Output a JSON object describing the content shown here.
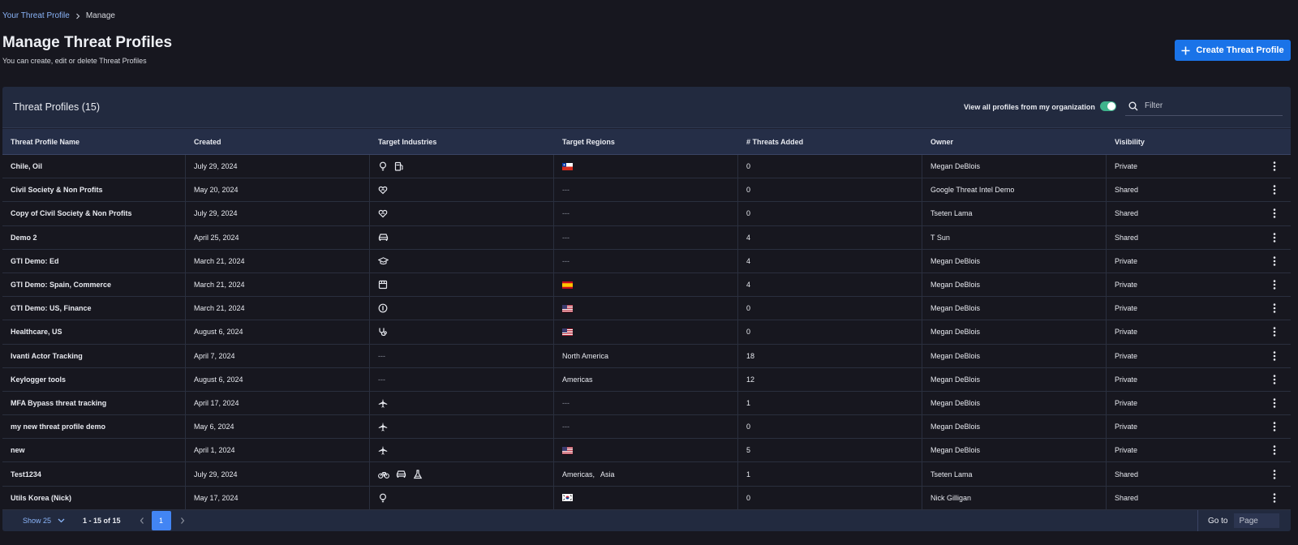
{
  "breadcrumb": {
    "parent": "Your Threat Profile",
    "current": "Manage"
  },
  "page": {
    "title": "Manage Threat Profiles",
    "subtitle": "You can create, edit or delete Threat Profiles",
    "create_button": "Create Threat Profile"
  },
  "panel": {
    "title": "Threat Profiles (15)",
    "toggle_label": "View all profiles from my organization",
    "toggle_on": true,
    "filter_placeholder": "Filter"
  },
  "columns": [
    "Threat Profile Name",
    "Created",
    "Target Industries",
    "Target Regions",
    "# Threats Added",
    "Owner",
    "Visibility"
  ],
  "rows": [
    {
      "name": "Chile, Oil",
      "created": "July 29, 2024",
      "industries": [
        "lightbulb-icon",
        "fuel-pump-icon"
      ],
      "regions": {
        "flags": [
          "chile"
        ]
      },
      "threats": "0",
      "owner": "Megan DeBlois",
      "visibility": "Private"
    },
    {
      "name": "Civil Society & Non Profits",
      "created": "May 20, 2024",
      "industries": [
        "heart-hand-icon"
      ],
      "regions": {
        "text": "---"
      },
      "threats": "0",
      "owner": "Google Threat Intel Demo",
      "visibility": "Shared"
    },
    {
      "name": "Copy of Civil Society & Non Profits",
      "created": "July 29, 2024",
      "industries": [
        "heart-hand-icon"
      ],
      "regions": {
        "text": "---"
      },
      "threats": "0",
      "owner": "Tseten Lama",
      "visibility": "Shared"
    },
    {
      "name": "Demo 2",
      "created": "April 25, 2024",
      "industries": [
        "car-icon"
      ],
      "regions": {
        "text": "---"
      },
      "threats": "4",
      "owner": "T Sun",
      "visibility": "Shared"
    },
    {
      "name": "GTI Demo: Ed",
      "created": "March 21, 2024",
      "industries": [
        "graduation-cap-icon"
      ],
      "regions": {
        "text": "---"
      },
      "threats": "4",
      "owner": "Megan DeBlois",
      "visibility": "Private"
    },
    {
      "name": "GTI Demo: Spain, Commerce",
      "created": "March 21, 2024",
      "industries": [
        "storefront-icon"
      ],
      "regions": {
        "flags": [
          "spain"
        ]
      },
      "threats": "4",
      "owner": "Megan DeBlois",
      "visibility": "Private"
    },
    {
      "name": "GTI Demo: US, Finance",
      "created": "March 21, 2024",
      "industries": [
        "money-icon"
      ],
      "regions": {
        "flags": [
          "usa"
        ]
      },
      "threats": "0",
      "owner": "Megan DeBlois",
      "visibility": "Private"
    },
    {
      "name": "Healthcare, US",
      "created": "August 6, 2024",
      "industries": [
        "stethoscope-icon"
      ],
      "regions": {
        "flags": [
          "usa"
        ]
      },
      "threats": "0",
      "owner": "Megan DeBlois",
      "visibility": "Private"
    },
    {
      "name": "Ivanti Actor Tracking",
      "created": "April 7, 2024",
      "industries": [],
      "industries_text": "---",
      "regions": {
        "text": "North America"
      },
      "threats": "18",
      "owner": "Megan DeBlois",
      "visibility": "Private"
    },
    {
      "name": "Keylogger tools",
      "created": "August 6, 2024",
      "industries": [],
      "industries_text": "---",
      "regions": {
        "text": "Americas"
      },
      "threats": "12",
      "owner": "Megan DeBlois",
      "visibility": "Private"
    },
    {
      "name": "MFA Bypass threat tracking",
      "created": "April 17, 2024",
      "industries": [
        "airplane-icon"
      ],
      "regions": {
        "text": "---"
      },
      "threats": "1",
      "owner": "Megan DeBlois",
      "visibility": "Private"
    },
    {
      "name": "my new threat profile demo",
      "created": "May 6, 2024",
      "industries": [
        "airplane-icon"
      ],
      "regions": {
        "text": "---"
      },
      "threats": "0",
      "owner": "Megan DeBlois",
      "visibility": "Private"
    },
    {
      "name": "new",
      "created": "April 1, 2024",
      "industries": [
        "airplane-icon"
      ],
      "regions": {
        "flags": [
          "usa"
        ]
      },
      "threats": "5",
      "owner": "Megan DeBlois",
      "visibility": "Private"
    },
    {
      "name": "Test1234",
      "created": "July 29, 2024",
      "industries": [
        "bicycle-icon",
        "car-icon",
        "flask-icon"
      ],
      "regions": {
        "text": "Americas,   Asia"
      },
      "threats": "1",
      "owner": "Tseten Lama",
      "visibility": "Shared"
    },
    {
      "name": "Utils Korea (Nick)",
      "created": "May 17, 2024",
      "industries": [
        "lightbulb-icon"
      ],
      "regions": {
        "flags": [
          "south-korea"
        ]
      },
      "threats": "0",
      "owner": "Nick Gilligan",
      "visibility": "Shared"
    }
  ],
  "footer": {
    "show_label": "Show 25",
    "range": "1 - 15 of 15",
    "current_page": "1",
    "goto_label": "Go to",
    "goto_placeholder": "Page"
  },
  "colors": {
    "accent": "#1a73e8",
    "toggle_on": "#3fb38c",
    "link": "#8ab4f8"
  }
}
